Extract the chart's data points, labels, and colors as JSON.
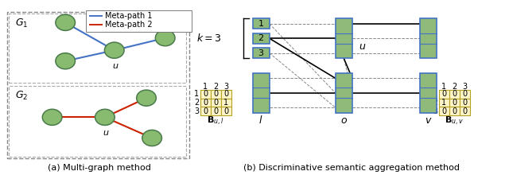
{
  "fig_width": 6.4,
  "fig_height": 2.25,
  "dpi": 100,
  "bg_color": "#ffffff",
  "green_fill": "#8fba7a",
  "green_edge": "#5b9a5b",
  "blue_edge": "#4472c4",
  "yellow_fill": "#fdf5c8",
  "yellow_edge": "#b8a020",
  "meta_path1_color": "#4472c4",
  "meta_path2_color": "#cc2200",
  "node_color": "#88bb70",
  "node_edge": "#4a7a4a",
  "caption_a": "(a) Multi-graph method",
  "caption_b": "(b) Discriminative semantic aggregation method",
  "matrix_l_data": [
    [
      0,
      0,
      0
    ],
    [
      0,
      0,
      1
    ],
    [
      0,
      0,
      0
    ]
  ],
  "matrix_v_data": [
    [
      0,
      0,
      0
    ],
    [
      1,
      0,
      0
    ],
    [
      0,
      0,
      0
    ]
  ],
  "col_labels": [
    "1",
    "2",
    "3"
  ],
  "row_labels": [
    "1",
    "2",
    "3"
  ],
  "label_Bu_l": "$\\mathbf{B}_{u,l}$",
  "label_Bu_v": "$\\mathbf{B}_{u,v}$",
  "legend_path1": "Meta-path 1",
  "legend_path2": "Meta-path 2"
}
